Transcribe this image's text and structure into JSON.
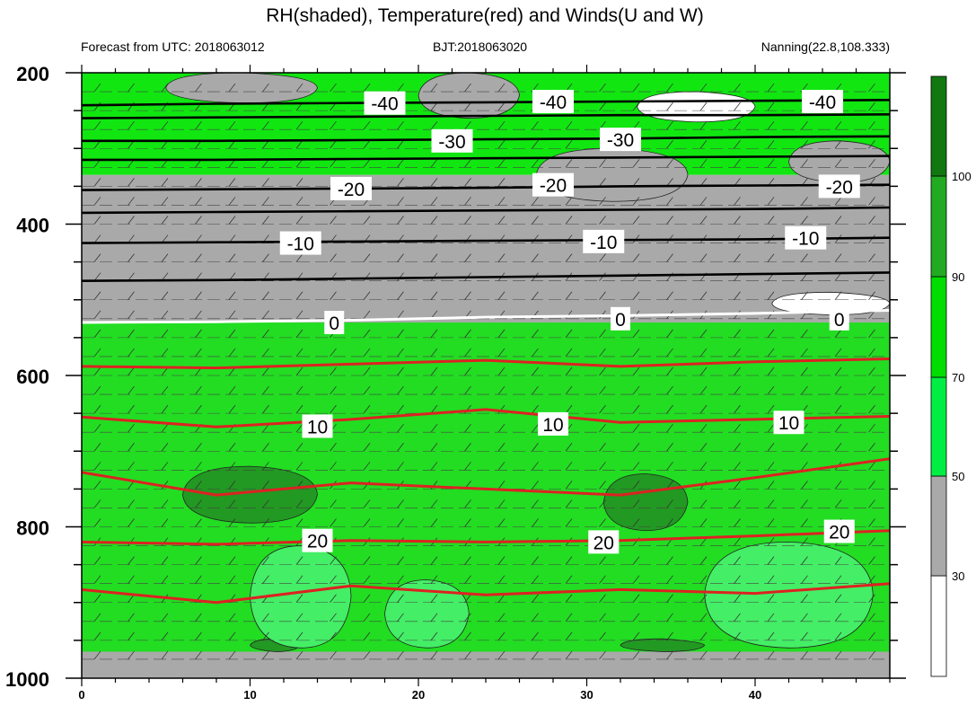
{
  "chart_data": {
    "type": "contour",
    "title": "RH(shaded), Temperature(red) and Winds(U and W)",
    "subtitle_left": "Forecast from UTC: 2018063012",
    "subtitle_center": "BJT:2018063020",
    "subtitle_right": "Nanning(22.8,108.333)",
    "x_ticks": [
      "0",
      "10",
      "20",
      "30",
      "40"
    ],
    "x_tick_values": [
      0,
      10,
      20,
      30,
      40
    ],
    "xlim": [
      0,
      48
    ],
    "y_ticks": [
      "200",
      "400",
      "600",
      "800",
      "1000"
    ],
    "y_tick_values": [
      200,
      400,
      600,
      800,
      1000
    ],
    "ylim": [
      1000,
      200
    ],
    "y_scale": "linear",
    "colorbar": {
      "labels": [
        "30",
        "50",
        "70",
        "90",
        "100"
      ],
      "levels": [
        30,
        50,
        70,
        90,
        100
      ],
      "colors": [
        "#ffffff",
        "#a9a9a9",
        "#00ee44",
        "#00dd00",
        "#22aa22",
        "#117711"
      ]
    },
    "rh_bands": [
      {
        "p_top": 200,
        "p_bottom": 335,
        "class": "green",
        "color": "#11e611"
      },
      {
        "p_top": 335,
        "p_bottom": 530,
        "class": "gray",
        "color": "#a9a9a9"
      },
      {
        "p_top": 530,
        "p_bottom": 965,
        "class": "green",
        "color": "#22dd22"
      },
      {
        "p_top": 965,
        "p_bottom": 1000,
        "class": "gray",
        "color": "#a9a9a9"
      }
    ],
    "rh_patches": [
      {
        "name": "gray-patch-top-left",
        "x": [
          5,
          14
        ],
        "p": [
          200,
          240
        ],
        "color": "#a9a9a9"
      },
      {
        "name": "gray-patch-top-mid",
        "x": [
          20,
          26
        ],
        "p": [
          200,
          260
        ],
        "color": "#a9a9a9"
      },
      {
        "name": "white-patch-top-right",
        "x": [
          33,
          40
        ],
        "p": [
          225,
          265
        ],
        "color": "#ffffff"
      },
      {
        "name": "gray-patch-upper-right",
        "x": [
          27,
          36
        ],
        "p": [
          300,
          370
        ],
        "color": "#a9a9a9"
      },
      {
        "name": "gray-patch-right",
        "x": [
          42,
          48
        ],
        "p": [
          290,
          345
        ],
        "color": "#a9a9a9"
      },
      {
        "name": "white-patch-right",
        "x": [
          41,
          48
        ],
        "p": [
          490,
          520
        ],
        "color": "#ffffff"
      },
      {
        "name": "dark-green-patch-left",
        "x": [
          6,
          14
        ],
        "p": [
          720,
          795
        ],
        "color": "#229922"
      },
      {
        "name": "dark-green-patch-right",
        "x": [
          31,
          36
        ],
        "p": [
          730,
          805
        ],
        "color": "#229922"
      },
      {
        "name": "dark-green-patch-bottom-left",
        "x": [
          10,
          13
        ],
        "p": [
          948,
          965
        ],
        "color": "#229922"
      },
      {
        "name": "dark-green-patch-bottom-right",
        "x": [
          32,
          37
        ],
        "p": [
          948,
          965
        ],
        "color": "#229922"
      },
      {
        "name": "light-green-patch-lower-left",
        "x": [
          10,
          16
        ],
        "p": [
          825,
          960
        ],
        "color": "#44ee66"
      },
      {
        "name": "light-green-patch-lower-mid",
        "x": [
          18,
          23
        ],
        "p": [
          870,
          960
        ],
        "color": "#44ee66"
      },
      {
        "name": "light-green-patch-lower-right",
        "x": [
          37,
          47
        ],
        "p": [
          820,
          960
        ],
        "color": "#44ee66"
      }
    ],
    "temperature_contours": [
      {
        "level": -40,
        "color": "#000000",
        "labeled": true,
        "p": [
          243,
          241,
          240,
          239,
          238,
          237,
          236
        ]
      },
      {
        "level": -35,
        "color": "#000000",
        "labeled": false,
        "p": [
          260,
          259,
          258,
          257,
          256,
          256,
          255
        ]
      },
      {
        "level": -30,
        "color": "#000000",
        "labeled": true,
        "p": [
          290,
          290,
          289,
          288,
          287,
          285,
          284
        ]
      },
      {
        "level": -25,
        "color": "#000000",
        "labeled": false,
        "p": [
          315,
          315,
          314,
          313,
          312,
          311,
          310
        ]
      },
      {
        "level": -20,
        "color": "#000000",
        "labeled": true,
        "p": [
          355,
          354,
          353,
          352,
          350,
          349,
          348
        ]
      },
      {
        "level": -15,
        "color": "#000000",
        "labeled": false,
        "p": [
          385,
          384,
          383,
          382,
          381,
          380,
          378
        ]
      },
      {
        "level": -10,
        "color": "#000000",
        "labeled": true,
        "p": [
          425,
          424,
          423,
          422,
          421,
          420,
          418
        ]
      },
      {
        "level": -5,
        "color": "#000000",
        "labeled": false,
        "p": [
          475,
          474,
          472,
          470,
          468,
          466,
          464
        ]
      },
      {
        "level": 0,
        "color": "#ffffff",
        "labeled": true,
        "p": [
          530,
          529,
          527,
          523,
          521,
          518,
          514
        ]
      },
      {
        "level": 5,
        "color": "#dd2222",
        "labeled": false,
        "p": [
          588,
          590,
          585,
          580,
          588,
          582,
          578
        ]
      },
      {
        "level": 10,
        "color": "#dd2222",
        "labeled": true,
        "p": [
          655,
          668,
          658,
          645,
          662,
          658,
          654
        ]
      },
      {
        "level": 15,
        "color": "#dd2222",
        "labeled": true,
        "p": [
          728,
          758,
          742,
          750,
          758,
          735,
          710
        ]
      },
      {
        "level": 20,
        "color": "#dd2222",
        "labeled": true,
        "p": [
          820,
          823,
          818,
          820,
          818,
          812,
          805
        ]
      },
      {
        "level": 25,
        "color": "#dd2222",
        "labeled": false,
        "p": [
          883,
          900,
          878,
          890,
          883,
          888,
          875
        ]
      }
    ],
    "contour_labels": [
      {
        "text": "-40",
        "x": 18,
        "p": 240
      },
      {
        "text": "-40",
        "x": 28,
        "p": 238
      },
      {
        "text": "-40",
        "x": 44,
        "p": 238
      },
      {
        "text": "-30",
        "x": 22,
        "p": 290
      },
      {
        "text": "-30",
        "x": 32,
        "p": 288
      },
      {
        "text": "-20",
        "x": 16,
        "p": 353
      },
      {
        "text": "-20",
        "x": 28,
        "p": 348
      },
      {
        "text": "-20",
        "x": 45,
        "p": 350
      },
      {
        "text": "-10",
        "x": 13,
        "p": 425
      },
      {
        "text": "-10",
        "x": 31,
        "p": 423
      },
      {
        "text": "-10",
        "x": 43,
        "p": 418
      },
      {
        "text": "0",
        "x": 15,
        "p": 530
      },
      {
        "text": "0",
        "x": 32,
        "p": 525
      },
      {
        "text": "0",
        "x": 45,
        "p": 525
      },
      {
        "text": "10",
        "x": 14,
        "p": 667
      },
      {
        "text": "10",
        "x": 28,
        "p": 664
      },
      {
        "text": "10",
        "x": 42,
        "p": 662
      },
      {
        "text": "20",
        "x": 14,
        "p": 818
      },
      {
        "text": "20",
        "x": 31,
        "p": 820
      },
      {
        "text": "20",
        "x": 45,
        "p": 806
      }
    ],
    "wind_levels_p": [
      200,
      225,
      250,
      275,
      300,
      325,
      350,
      375,
      400,
      425,
      450,
      475,
      500,
      525,
      550,
      575,
      600,
      625,
      650,
      675,
      700,
      725,
      750,
      775,
      800,
      825,
      850,
      875,
      900,
      925,
      950,
      975
    ],
    "wind_times": [
      0,
      2,
      4,
      6,
      8,
      10,
      12,
      14,
      16,
      18,
      20,
      22,
      24,
      26,
      28,
      30,
      32,
      34,
      36,
      38,
      40,
      42,
      44,
      46
    ]
  }
}
